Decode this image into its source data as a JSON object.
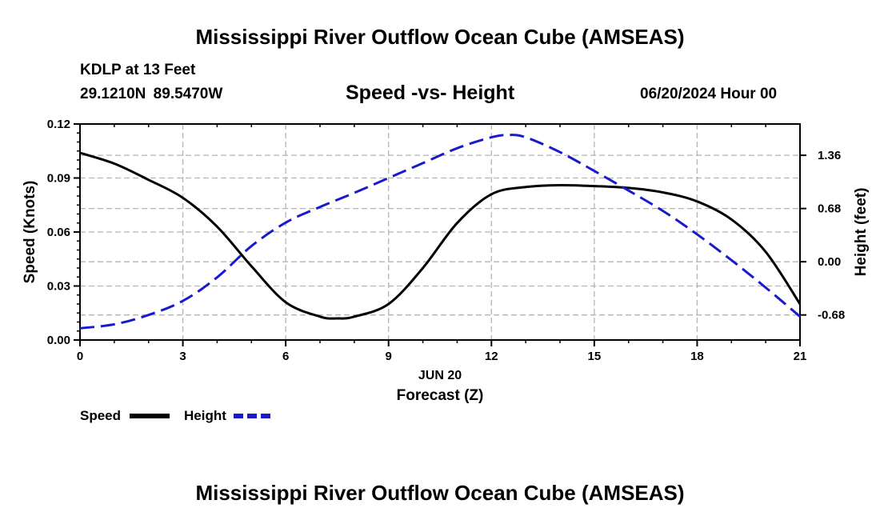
{
  "page": {
    "title": "Mississippi River Outflow Ocean Cube (AMSEAS)",
    "title_bottom": "Mississippi River Outflow Ocean Cube (AMSEAS)",
    "station": "KDLP at 13 Feet",
    "coords": "29.1210N  89.5470W",
    "chart_title": "Speed -vs- Height",
    "datetime": "06/20/2024 Hour 00"
  },
  "chart_data": {
    "type": "line",
    "title": "Speed -vs- Height",
    "xlabel": "Forecast (Z)",
    "xlabel_date": "JUN 20",
    "ylabel": "Speed (Knots)",
    "y2label": "Height (feet)",
    "xlim": [
      0,
      21
    ],
    "ylim": [
      0,
      0.12
    ],
    "y2lim": [
      -1.0,
      1.76
    ],
    "x_ticks": [
      0,
      3,
      6,
      9,
      12,
      15,
      18,
      21
    ],
    "x_tick_labels": [
      "0",
      "3",
      "6",
      "9",
      "12",
      "15",
      "18",
      "21"
    ],
    "y_ticks": [
      0,
      0.03,
      0.06,
      0.09,
      0.12
    ],
    "y_tick_labels": [
      "0.00",
      "0.03",
      "0.06",
      "0.09",
      "0.12"
    ],
    "y2_ticks": [
      -0.68,
      0,
      0.68,
      1.36
    ],
    "y2_tick_labels": [
      "-0.68",
      "0.00",
      "0.68",
      "1.36"
    ],
    "grid": true,
    "legend_position": "bottom-left",
    "colors": {
      "speed": "#000000",
      "height": "#1a1acc",
      "grid": "#b4b4b4"
    },
    "series": [
      {
        "name": "Speed",
        "axis": "left",
        "style": "solid",
        "x": [
          0,
          1,
          2,
          3,
          4,
          5,
          6,
          7,
          7.5,
          8,
          9,
          10,
          11,
          12,
          13,
          14,
          15,
          16,
          17,
          18,
          19,
          20,
          21
        ],
        "values": [
          0.104,
          0.098,
          0.089,
          0.079,
          0.063,
          0.041,
          0.021,
          0.013,
          0.012,
          0.013,
          0.02,
          0.04,
          0.065,
          0.081,
          0.085,
          0.086,
          0.0855,
          0.0845,
          0.082,
          0.077,
          0.067,
          0.049,
          0.02
        ]
      },
      {
        "name": "Height",
        "axis": "right",
        "style": "dashed",
        "x": [
          0,
          1,
          2,
          3,
          4,
          5,
          6,
          7,
          8,
          9,
          10,
          11,
          12,
          12.5,
          13,
          14,
          15,
          16,
          17,
          18,
          19,
          20,
          21
        ],
        "values": [
          -0.85,
          -0.8,
          -0.68,
          -0.5,
          -0.2,
          0.2,
          0.5,
          0.7,
          0.88,
          1.07,
          1.26,
          1.45,
          1.59,
          1.62,
          1.59,
          1.4,
          1.16,
          0.91,
          0.65,
          0.35,
          0.02,
          -0.33,
          -0.7
        ]
      }
    ],
    "legend": [
      {
        "label": "Speed",
        "series": "Speed"
      },
      {
        "label": "Height",
        "series": "Height"
      }
    ]
  }
}
